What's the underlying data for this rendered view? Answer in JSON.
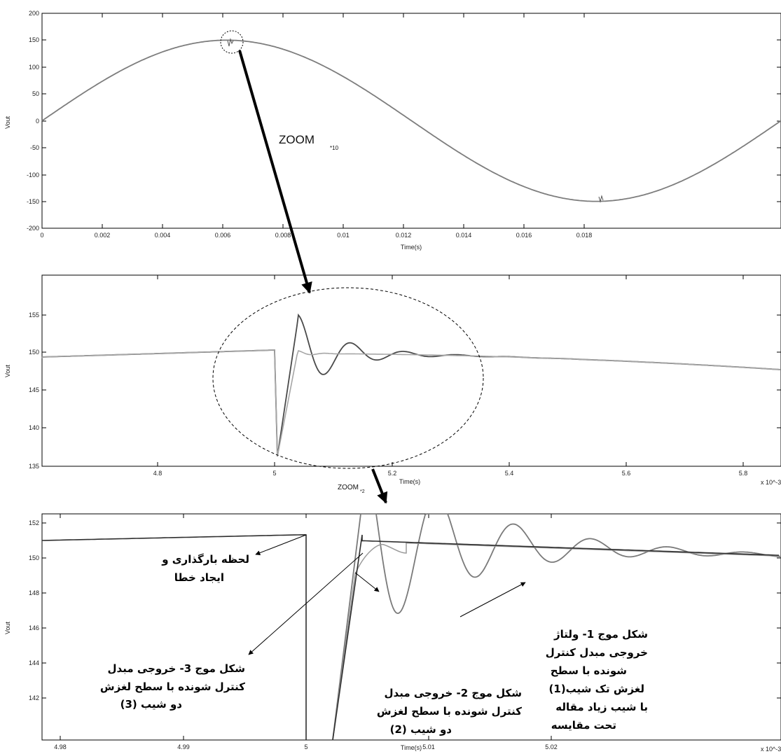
{
  "chart_data": [
    {
      "type": "line",
      "xlabel": "Time(s)",
      "ylabel": "Vout",
      "xlim": [
        0,
        0.02
      ],
      "ylim": [
        -200,
        200
      ],
      "xticks": [
        "0",
        "0.002",
        "0.004",
        "0.006",
        "0.008",
        "0.01",
        "0.012",
        "0.014",
        "0.016",
        "0.018"
      ],
      "yticks": [
        "200",
        "150",
        "100",
        "50",
        "0",
        "-50",
        "-100",
        "-150",
        "-200"
      ],
      "series": [
        {
          "values": "sine: amplitude 150, period 0.02 s, small disturbances near t=0.005 and t=0.0152"
        }
      ]
    },
    {
      "type": "line",
      "xlabel": "Time(s)",
      "ylabel": "Vout",
      "xlim": [
        4.8,
        5.3
      ],
      "xscale": "x 10^-3",
      "ylim": [
        135,
        160
      ],
      "xticks": [
        "4.8",
        "5",
        "5.2",
        "5.4",
        "5.6",
        "5.8"
      ],
      "yticks": [
        "155",
        "150",
        "145",
        "140",
        "135"
      ],
      "series": [
        {
          "values": "load step at t=5e-3: drop to 136, damped oscillation peaks ~155"
        },
        {
          "values": "load step at t=5e-3: drop to 136, fast settle ~150.5"
        }
      ]
    },
    {
      "type": "line",
      "xlabel": "Time(s)",
      "ylabel": "Vout",
      "xlim": [
        4.98,
        5.02
      ],
      "xscale": "x 10^-3",
      "ylim": [
        141,
        153
      ],
      "xticks": [
        "4.98",
        "4.99",
        "5",
        "5.01",
        "5.02"
      ],
      "yticks": [
        "152",
        "150",
        "148",
        "146",
        "144",
        "142"
      ],
      "series": [
        {
          "values": "waveform 1: large overshoot oscillation"
        },
        {
          "values": "waveform 2: two-slope surface"
        },
        {
          "values": "waveform 3: two-slope surface, fast settle"
        }
      ]
    }
  ],
  "annotations": {
    "zoom1": "ZOOM",
    "zoom1_sub": "*10",
    "zoom2": "ZOOM",
    "zoom2_sub": "*2",
    "note_load_line1": "لحظه بارگذاری و",
    "note_load_line2": "ایجاد خطا",
    "note_w3_line1": "شکل موج 3- خروجی مبدل",
    "note_w3_line2": "کنترل شونده با سطح لغزش",
    "note_w3_line3": "دو شیب (3)",
    "note_w2_line1": "شکل موج 2- خروجی مبدل",
    "note_w2_line2": "کنترل شونده با سطح لغزش",
    "note_w2_line3": "دو شیب (2)",
    "note_w1_line1": "شکل موج 1- ولتاژ",
    "note_w1_line2": "خروجی مبدل کنترل",
    "note_w1_line3": "شونده با سطح",
    "note_w1_line4": "لغزش تک شیب(1)",
    "note_w1_line5": "با شیب زیاد مقاله",
    "note_w1_line6": "تحت مقایسه"
  },
  "colors": {
    "waveform_dark": "#2a2a2a",
    "waveform_gray": "#8c8c8c",
    "axis": "#000000"
  }
}
